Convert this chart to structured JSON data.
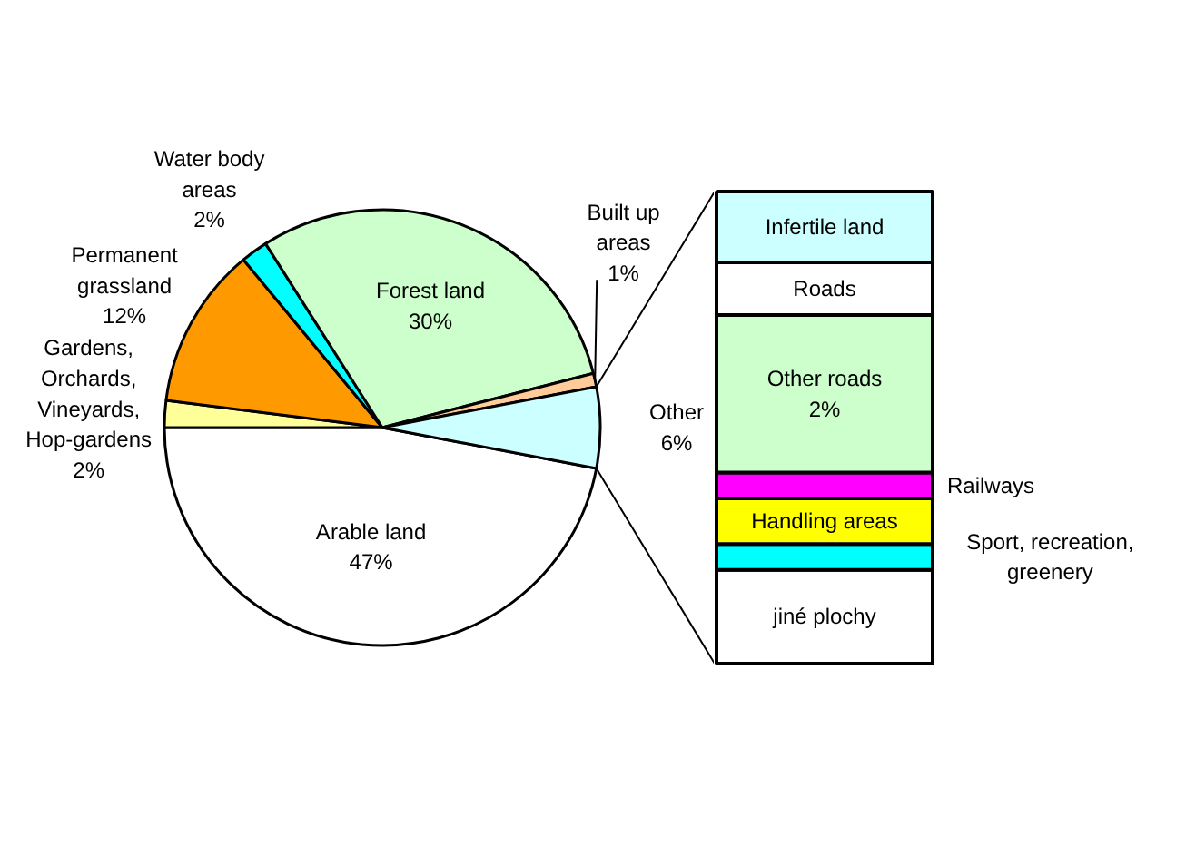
{
  "chart_data": [
    {
      "type": "pie",
      "categories": [
        "Arable land",
        "Gardens, Orchards, Vineyards, Hop-gardens",
        "Permanent grassland",
        "Water body areas",
        "Forest land",
        "Built up areas",
        "Other"
      ],
      "values": [
        47,
        2,
        12,
        2,
        30,
        1,
        6
      ],
      "value_labels": [
        "47%",
        "2%",
        "12%",
        "2%",
        "30%",
        "1%",
        "6%"
      ],
      "colors": [
        "#ffffff",
        "#ffff99",
        "#ff9900",
        "#00ffff",
        "#ccffcc",
        "#ffcc99",
        "#ccffff"
      ]
    },
    {
      "type": "bar",
      "stacked": true,
      "categories": [
        null
      ],
      "series": [
        {
          "name": "jiné plochy",
          "color": "#ffffff",
          "values": [
            1.19
          ]
        },
        {
          "name": "Sport, recreation, greenery",
          "color": "#00ffff",
          "values": [
            0.33
          ]
        },
        {
          "name": "Handling areas",
          "color": "#ffff00",
          "values": [
            0.58
          ]
        },
        {
          "name": "Railways",
          "color": "#ff00ff",
          "values": [
            0.33
          ]
        },
        {
          "name": "Other roads",
          "color": "#ccffcc",
          "values": [
            2
          ],
          "value_labels": [
            "2%"
          ]
        },
        {
          "name": "Roads",
          "color": "#ffffff",
          "values": [
            0.67
          ]
        },
        {
          "name": "Infertile land",
          "color": "#ccffff",
          "values": [
            0.9
          ]
        }
      ]
    }
  ]
}
